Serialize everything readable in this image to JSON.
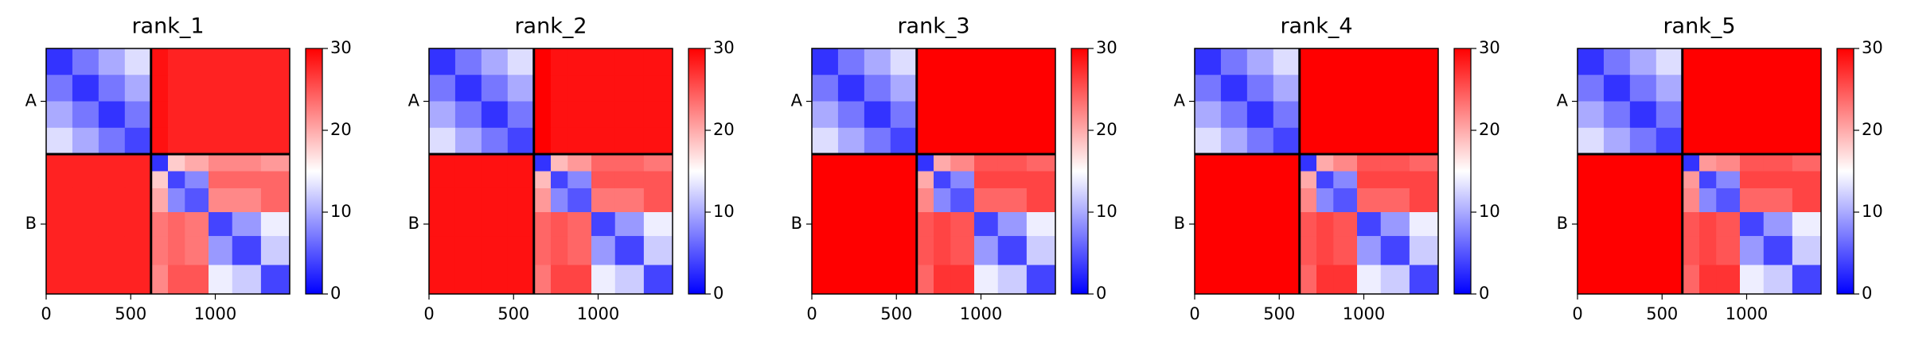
{
  "chart_data": [
    {
      "type": "heatmap",
      "title": "rank_1",
      "colormap": "bwr",
      "bins": [
        0,
        155,
        310,
        465,
        620,
        720,
        820,
        960,
        1100,
        1270,
        1440
      ],
      "xlim": [
        0,
        1440
      ],
      "ylim": [
        0,
        1440
      ],
      "y_inverted": true,
      "xticks": [
        0,
        500,
        1000
      ],
      "yticks": [
        {
          "value": 310,
          "label": "A"
        },
        {
          "value": 1030,
          "label": "B"
        }
      ],
      "chain_breaks": [
        620
      ],
      "clim": [
        0,
        30
      ],
      "cticks": [
        0,
        10,
        20,
        30
      ],
      "z": [
        [
          3,
          7,
          10,
          13,
          29,
          28,
          28,
          28,
          28,
          28
        ],
        [
          7,
          3,
          7,
          10,
          29,
          28,
          28,
          28,
          28,
          28
        ],
        [
          10,
          7,
          3,
          7,
          29,
          28,
          28,
          28,
          28,
          28
        ],
        [
          13,
          10,
          7,
          4,
          29,
          28,
          28,
          28,
          28,
          28
        ],
        [
          28,
          28,
          28,
          28,
          3,
          18,
          20,
          22,
          22,
          21
        ],
        [
          28,
          28,
          28,
          28,
          18,
          4,
          8,
          24,
          24,
          24
        ],
        [
          28,
          28,
          28,
          28,
          20,
          8,
          5,
          22,
          22,
          24
        ],
        [
          28,
          28,
          28,
          28,
          23,
          24,
          23,
          4,
          9,
          14
        ],
        [
          28,
          28,
          28,
          28,
          23,
          24,
          23,
          9,
          4,
          12
        ],
        [
          28,
          28,
          28,
          28,
          22,
          25,
          25,
          14,
          12,
          4
        ]
      ]
    },
    {
      "type": "heatmap",
      "title": "rank_2",
      "colormap": "bwr",
      "bins": [
        0,
        155,
        310,
        465,
        620,
        720,
        820,
        960,
        1100,
        1270,
        1440
      ],
      "xlim": [
        0,
        1440
      ],
      "ylim": [
        0,
        1440
      ],
      "y_inverted": true,
      "xticks": [
        0,
        500,
        1000
      ],
      "yticks": [
        {
          "value": 310,
          "label": "A"
        },
        {
          "value": 1030,
          "label": "B"
        }
      ],
      "chain_breaks": [
        620
      ],
      "clim": [
        0,
        30
      ],
      "cticks": [
        0,
        10,
        20,
        30
      ],
      "z": [
        [
          3,
          7,
          10,
          13,
          30,
          29,
          29,
          29,
          29,
          29
        ],
        [
          7,
          3,
          7,
          10,
          30,
          29,
          29,
          29,
          29,
          29
        ],
        [
          10,
          7,
          3,
          7,
          30,
          29,
          29,
          29,
          29,
          29
        ],
        [
          13,
          10,
          7,
          4,
          30,
          29,
          29,
          29,
          29,
          29
        ],
        [
          29,
          29,
          29,
          29,
          3,
          19,
          21,
          24,
          24,
          23
        ],
        [
          29,
          29,
          29,
          29,
          19,
          4,
          8,
          25,
          25,
          25
        ],
        [
          29,
          29,
          29,
          29,
          21,
          8,
          5,
          23,
          23,
          25
        ],
        [
          29,
          29,
          29,
          29,
          24,
          25,
          24,
          4,
          9,
          14
        ],
        [
          29,
          29,
          29,
          29,
          24,
          25,
          24,
          9,
          4,
          12
        ],
        [
          29,
          29,
          29,
          29,
          23,
          26,
          26,
          14,
          12,
          4
        ]
      ]
    },
    {
      "type": "heatmap",
      "title": "rank_3",
      "colormap": "bwr",
      "bins": [
        0,
        155,
        310,
        465,
        620,
        720,
        820,
        960,
        1100,
        1270,
        1440
      ],
      "xlim": [
        0,
        1440
      ],
      "ylim": [
        0,
        1440
      ],
      "y_inverted": true,
      "xticks": [
        0,
        500,
        1000
      ],
      "yticks": [
        {
          "value": 310,
          "label": "A"
        },
        {
          "value": 1030,
          "label": "B"
        }
      ],
      "chain_breaks": [
        620
      ],
      "clim": [
        0,
        30
      ],
      "cticks": [
        0,
        10,
        20,
        30
      ],
      "z": [
        [
          3,
          7,
          10,
          13,
          30,
          30,
          30,
          30,
          30,
          30
        ],
        [
          7,
          3,
          7,
          10,
          30,
          30,
          30,
          30,
          30,
          30
        ],
        [
          10,
          7,
          3,
          7,
          30,
          30,
          30,
          30,
          30,
          30
        ],
        [
          13,
          10,
          7,
          4,
          30,
          30,
          30,
          30,
          30,
          30
        ],
        [
          30,
          30,
          30,
          30,
          3,
          20,
          22,
          25,
          25,
          24
        ],
        [
          30,
          30,
          30,
          30,
          20,
          4,
          8,
          26,
          26,
          26
        ],
        [
          30,
          30,
          30,
          30,
          22,
          8,
          5,
          24,
          24,
          26
        ],
        [
          30,
          30,
          30,
          30,
          25,
          26,
          25,
          4,
          9,
          14
        ],
        [
          30,
          30,
          30,
          30,
          25,
          26,
          25,
          9,
          4,
          12
        ],
        [
          30,
          30,
          30,
          30,
          24,
          27,
          27,
          14,
          12,
          4
        ]
      ]
    },
    {
      "type": "heatmap",
      "title": "rank_4",
      "colormap": "bwr",
      "bins": [
        0,
        155,
        310,
        465,
        620,
        720,
        820,
        960,
        1100,
        1270,
        1440
      ],
      "xlim": [
        0,
        1440
      ],
      "ylim": [
        0,
        1440
      ],
      "y_inverted": true,
      "xticks": [
        0,
        500,
        1000
      ],
      "yticks": [
        {
          "value": 310,
          "label": "A"
        },
        {
          "value": 1030,
          "label": "B"
        }
      ],
      "chain_breaks": [
        620
      ],
      "clim": [
        0,
        30
      ],
      "cticks": [
        0,
        10,
        20,
        30
      ],
      "z": [
        [
          3,
          7,
          10,
          13,
          30,
          30,
          30,
          30,
          30,
          30
        ],
        [
          7,
          3,
          7,
          10,
          30,
          30,
          30,
          30,
          30,
          30
        ],
        [
          10,
          7,
          3,
          7,
          30,
          30,
          30,
          30,
          30,
          30
        ],
        [
          13,
          10,
          7,
          4,
          30,
          30,
          30,
          30,
          30,
          30
        ],
        [
          30,
          30,
          30,
          30,
          3,
          20,
          22,
          25,
          25,
          24
        ],
        [
          30,
          30,
          30,
          30,
          20,
          4,
          8,
          26,
          26,
          26
        ],
        [
          30,
          30,
          30,
          30,
          22,
          8,
          5,
          24,
          24,
          26
        ],
        [
          30,
          30,
          30,
          30,
          25,
          26,
          25,
          4,
          9,
          14
        ],
        [
          30,
          30,
          30,
          30,
          25,
          26,
          25,
          9,
          4,
          12
        ],
        [
          30,
          30,
          30,
          30,
          24,
          27,
          27,
          14,
          12,
          4
        ]
      ]
    },
    {
      "type": "heatmap",
      "title": "rank_5",
      "colormap": "bwr",
      "bins": [
        0,
        155,
        310,
        465,
        620,
        720,
        820,
        960,
        1100,
        1270,
        1440
      ],
      "xlim": [
        0,
        1440
      ],
      "ylim": [
        0,
        1440
      ],
      "y_inverted": true,
      "xticks": [
        0,
        500,
        1000
      ],
      "yticks": [
        {
          "value": 310,
          "label": "A"
        },
        {
          "value": 1030,
          "label": "B"
        }
      ],
      "chain_breaks": [
        620
      ],
      "clim": [
        0,
        30
      ],
      "cticks": [
        0,
        10,
        20,
        30
      ],
      "z": [
        [
          3,
          7,
          10,
          13,
          30,
          30,
          30,
          30,
          30,
          30
        ],
        [
          7,
          3,
          7,
          10,
          30,
          30,
          30,
          30,
          30,
          30
        ],
        [
          10,
          7,
          3,
          7,
          30,
          30,
          30,
          30,
          30,
          30
        ],
        [
          13,
          10,
          7,
          4,
          30,
          30,
          30,
          30,
          30,
          30
        ],
        [
          30,
          30,
          30,
          30,
          3,
          21,
          22,
          25,
          25,
          24
        ],
        [
          30,
          30,
          30,
          30,
          21,
          4,
          8,
          26,
          26,
          26
        ],
        [
          30,
          30,
          30,
          30,
          22,
          8,
          5,
          24,
          24,
          26
        ],
        [
          30,
          30,
          30,
          30,
          25,
          26,
          25,
          4,
          9,
          14
        ],
        [
          30,
          30,
          30,
          30,
          25,
          26,
          25,
          9,
          4,
          12
        ],
        [
          30,
          30,
          30,
          30,
          24,
          27,
          27,
          14,
          12,
          4
        ]
      ]
    }
  ]
}
